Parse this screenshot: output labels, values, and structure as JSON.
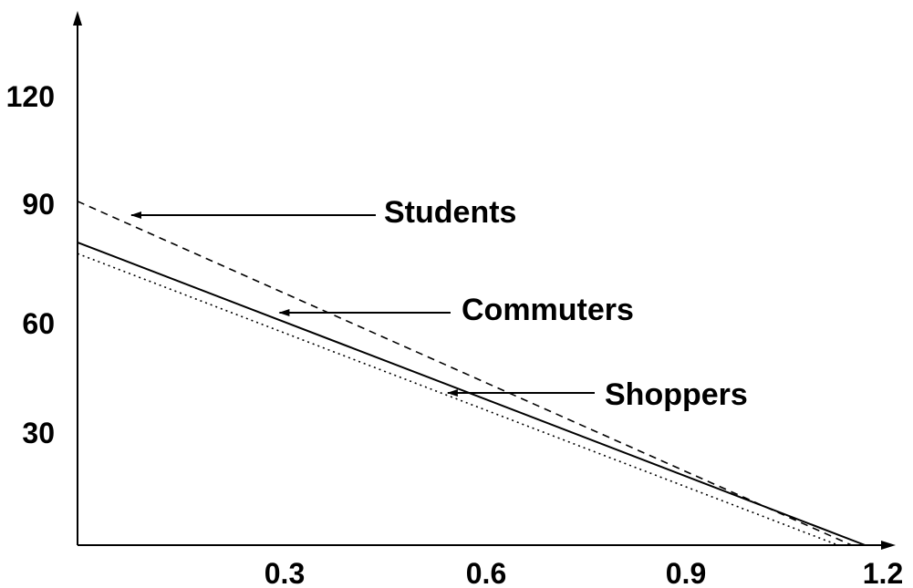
{
  "chart_data": {
    "type": "line",
    "title": "",
    "xlabel": "",
    "ylabel": "",
    "xlim": [
      0,
      1.2
    ],
    "ylim": [
      0,
      135
    ],
    "x_ticks": [
      {
        "value": 0.3,
        "label": "0.3"
      },
      {
        "value": 0.6,
        "label": "0.6"
      },
      {
        "value": 0.9,
        "label": "0.9"
      },
      {
        "value": 1.2,
        "label": "1.2"
      }
    ],
    "y_ticks": [
      {
        "value": 30,
        "label": "30"
      },
      {
        "value": 60,
        "label": "60"
      },
      {
        "value": 90,
        "label": "90"
      },
      {
        "value": 120,
        "label": "120"
      }
    ],
    "grid": false,
    "legend": "none",
    "series": [
      {
        "name": "Students",
        "style": "dashed",
        "color": "#000000",
        "points": [
          {
            "x": 0.0,
            "y": 92
          },
          {
            "x": 1.15,
            "y": 0
          }
        ]
      },
      {
        "name": "Commuters",
        "style": "solid",
        "color": "#000000",
        "points": [
          {
            "x": 0.0,
            "y": 81
          },
          {
            "x": 1.17,
            "y": 0
          }
        ]
      },
      {
        "name": "Shoppers",
        "style": "dotted",
        "color": "#000000",
        "points": [
          {
            "x": 0.0,
            "y": 78
          },
          {
            "x": 1.13,
            "y": 0
          }
        ]
      }
    ],
    "annotations": [
      {
        "text": "Students",
        "series": "Students",
        "points_to": {
          "x": 0.08,
          "y": 85
        }
      },
      {
        "text": "Commuters",
        "series": "Commuters",
        "points_to": {
          "x": 0.3,
          "y": 60
        }
      },
      {
        "text": "Shoppers",
        "series": "Shoppers",
        "points_to": {
          "x": 0.55,
          "y": 40
        }
      }
    ]
  }
}
